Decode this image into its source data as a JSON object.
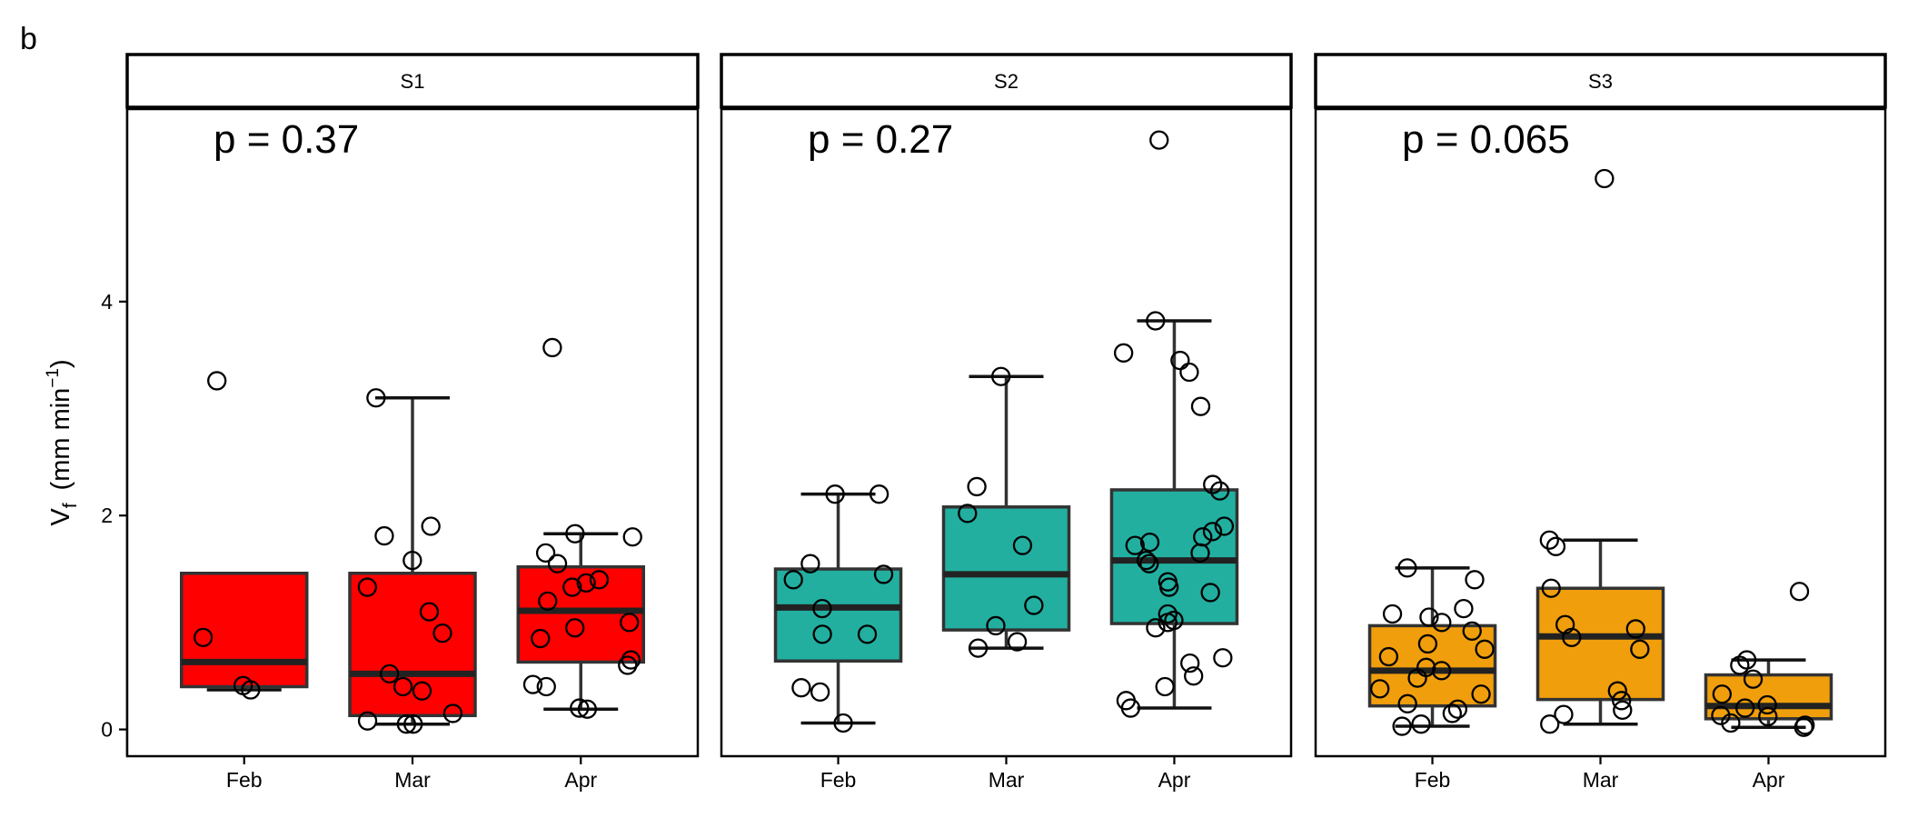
{
  "panel_label": "b",
  "chart_data": {
    "type": "box",
    "ylabel_main": "V",
    "ylabel_sub": "f",
    "ylabel_unit_prefix": "(mm min",
    "ylabel_unit_sup": "−1",
    "ylabel_unit_suffix": ")",
    "categories": [
      "Feb",
      "Mar",
      "Apr"
    ],
    "y_ticks": [
      0,
      2,
      4
    ],
    "ylim": [
      -0.25,
      5.8
    ],
    "outlier_style": "open circles",
    "facets": [
      {
        "strip": "S1",
        "p_label": "p = 0.37",
        "color": "#FF0000",
        "boxes": [
          {
            "cat": "Feb",
            "lower_whisker": 0.37,
            "q1": 0.4,
            "median": 0.63,
            "q3": 1.46,
            "upper_whisker": 1.46,
            "points": [
              0.41,
              0.37,
              0.86,
              3.26
            ]
          },
          {
            "cat": "Mar",
            "lower_whisker": 0.05,
            "q1": 0.13,
            "median": 0.52,
            "q3": 1.46,
            "upper_whisker": 3.1,
            "points": [
              0.05,
              0.05,
              0.08,
              0.15,
              0.36,
              0.4,
              0.52,
              0.9,
              1.1,
              1.33,
              1.58,
              1.81,
              1.9,
              3.1
            ]
          },
          {
            "cat": "Apr",
            "lower_whisker": 0.19,
            "q1": 0.63,
            "median": 1.11,
            "q3": 1.52,
            "upper_whisker": 1.83,
            "points": [
              0.19,
              0.2,
              0.4,
              0.42,
              0.6,
              0.65,
              0.85,
              0.95,
              1.0,
              1.2,
              1.33,
              1.37,
              1.4,
              1.55,
              1.65,
              1.8,
              1.83,
              3.57
            ]
          }
        ]
      },
      {
        "strip": "S2",
        "p_label": "p = 0.27",
        "color": "#22AFA0",
        "boxes": [
          {
            "cat": "Feb",
            "lower_whisker": 0.06,
            "q1": 0.64,
            "median": 1.14,
            "q3": 1.5,
            "upper_whisker": 2.2,
            "points": [
              0.06,
              0.35,
              0.39,
              0.89,
              0.89,
              1.13,
              1.4,
              1.45,
              1.55,
              2.2,
              2.2
            ]
          },
          {
            "cat": "Mar",
            "lower_whisker": 0.76,
            "q1": 0.93,
            "median": 1.45,
            "q3": 2.08,
            "upper_whisker": 3.3,
            "points": [
              0.76,
              0.82,
              0.97,
              1.16,
              1.72,
              2.02,
              2.27,
              3.3
            ]
          },
          {
            "cat": "Apr",
            "lower_whisker": 0.2,
            "q1": 0.99,
            "median": 1.58,
            "q3": 2.24,
            "upper_whisker": 3.82,
            "points": [
              0.2,
              0.27,
              0.4,
              0.5,
              0.62,
              0.67,
              0.95,
              1.0,
              1.02,
              1.08,
              1.28,
              1.33,
              1.38,
              1.55,
              1.58,
              1.65,
              1.72,
              1.75,
              1.8,
              1.85,
              1.9,
              2.23,
              2.29,
              3.02,
              3.34,
              3.45,
              3.52,
              3.82,
              5.51
            ]
          }
        ]
      },
      {
        "strip": "S3",
        "p_label": "p = 0.065",
        "color": "#F09E0C",
        "boxes": [
          {
            "cat": "Feb",
            "lower_whisker": 0.03,
            "q1": 0.22,
            "median": 0.55,
            "q3": 0.97,
            "upper_whisker": 1.51,
            "points": [
              0.03,
              0.05,
              0.15,
              0.19,
              0.24,
              0.33,
              0.38,
              0.48,
              0.55,
              0.58,
              0.68,
              0.75,
              0.8,
              0.92,
              1.0,
              1.05,
              1.08,
              1.13,
              1.4,
              1.51
            ]
          },
          {
            "cat": "Mar",
            "lower_whisker": 0.05,
            "q1": 0.28,
            "median": 0.87,
            "q3": 1.32,
            "upper_whisker": 1.77,
            "points": [
              0.05,
              0.14,
              0.18,
              0.27,
              0.36,
              0.75,
              0.86,
              0.94,
              0.98,
              1.32,
              1.71,
              1.77,
              5.15
            ]
          },
          {
            "cat": "Apr",
            "lower_whisker": 0.02,
            "q1": 0.1,
            "median": 0.22,
            "q3": 0.51,
            "upper_whisker": 0.65,
            "points": [
              0.02,
              0.04,
              0.06,
              0.12,
              0.13,
              0.2,
              0.23,
              0.33,
              0.47,
              0.6,
              0.65,
              1.29
            ]
          }
        ]
      }
    ]
  }
}
